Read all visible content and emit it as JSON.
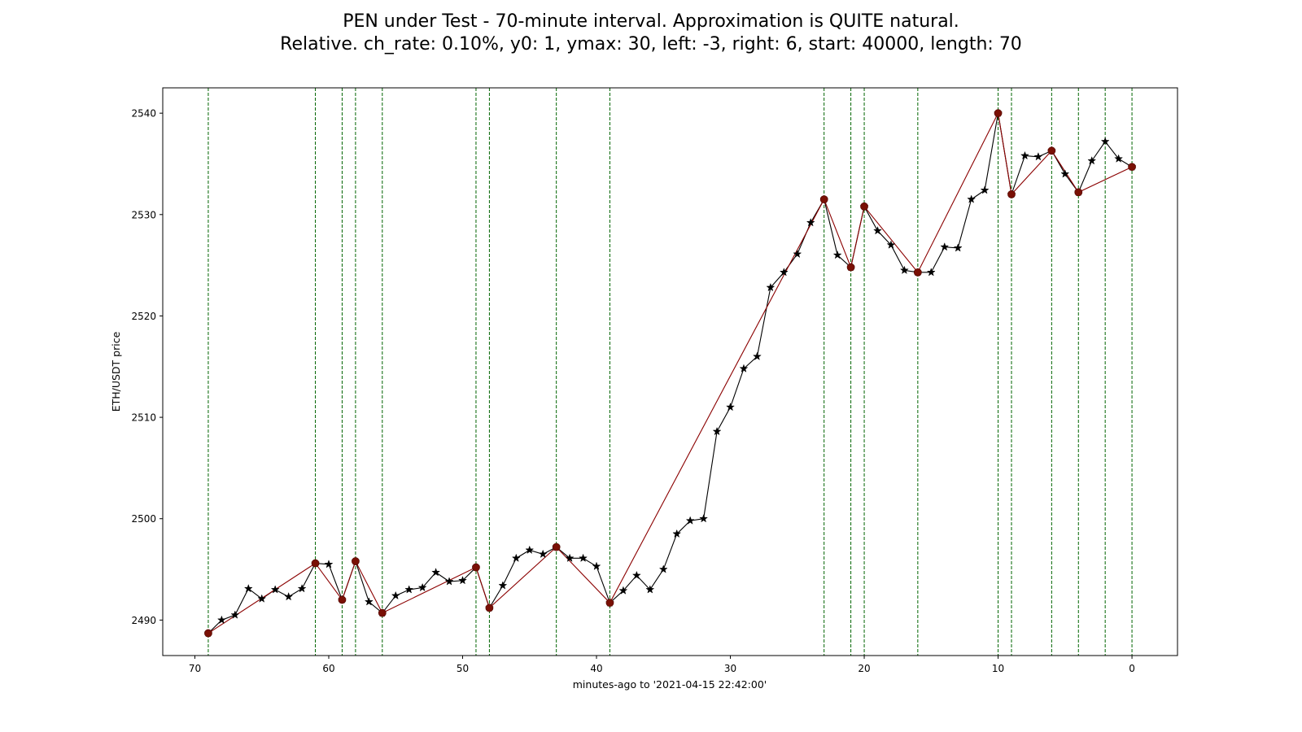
{
  "chart_data": {
    "type": "line",
    "title": "PEN under Test - 70-minute interval. Approximation is QUITE natural.",
    "subtitle": "Relative. ch_rate: 0.10%, y0: 1, ymax: 30, left: -3, right: 6, start: 40000, length: 70",
    "xlabel": "minutes-ago to '2021-04-15 22:42:00'",
    "ylabel": "ETH/USDT price",
    "xlim": [
      72.4,
      -3.4
    ],
    "ylim": [
      2486.5,
      2542.5
    ],
    "x_ticks": [
      70,
      60,
      50,
      40,
      30,
      20,
      10,
      0
    ],
    "y_ticks": [
      2490,
      2500,
      2510,
      2520,
      2530,
      2540
    ],
    "grid": false,
    "series": [
      {
        "color": "#000000",
        "marker": "star",
        "x": [
          69,
          68,
          67,
          66,
          65,
          64,
          63,
          62,
          61,
          60,
          59,
          58,
          57,
          56,
          55,
          54,
          53,
          52,
          51,
          50,
          49,
          48,
          47,
          46,
          45,
          44,
          43,
          42,
          41,
          40,
          39,
          38,
          37,
          36,
          35,
          34,
          33,
          32,
          31,
          30,
          29,
          28,
          27,
          26,
          25,
          24,
          23,
          22,
          21,
          20,
          19,
          18,
          17,
          16,
          15,
          14,
          13,
          12,
          11,
          10,
          9,
          8,
          7,
          6,
          5,
          4,
          3,
          2,
          1,
          0
        ],
        "values": [
          2488.7,
          2490.0,
          2490.5,
          2493.1,
          2492.1,
          2493.0,
          2492.3,
          2493.1,
          2495.6,
          2495.5,
          2492.0,
          2495.8,
          2491.8,
          2490.7,
          2492.4,
          2493.0,
          2493.2,
          2494.7,
          2493.8,
          2493.9,
          2495.2,
          2491.2,
          2493.4,
          2496.1,
          2496.9,
          2496.5,
          2497.2,
          2496.1,
          2496.1,
          2495.3,
          2491.7,
          2492.9,
          2494.4,
          2493.0,
          2495.0,
          2498.5,
          2499.8,
          2500.0,
          2508.6,
          2511.0,
          2514.8,
          2516.0,
          2522.8,
          2524.3,
          2526.1,
          2529.2,
          2531.5,
          2526.0,
          2524.8,
          2530.8,
          2528.4,
          2527.0,
          2524.5,
          2524.3,
          2524.3,
          2526.8,
          2526.7,
          2531.5,
          2532.4,
          2540.0,
          2532.0,
          2535.8,
          2535.7,
          2536.3,
          2534.0,
          2532.2,
          2535.3,
          2537.2,
          2535.5,
          2534.7
        ]
      },
      {
        "color": "#8b0000",
        "marker": "circle",
        "x": [
          69,
          61,
          59,
          58,
          56,
          49,
          48,
          43,
          39,
          23,
          21,
          20,
          16,
          10,
          9,
          6,
          4,
          0
        ],
        "values": [
          2488.7,
          2495.6,
          2492.0,
          2495.8,
          2490.7,
          2495.2,
          2491.2,
          2497.2,
          2491.7,
          2531.5,
          2524.8,
          2530.8,
          2524.3,
          2540.0,
          2532.0,
          2536.3,
          2532.2,
          2534.7
        ]
      }
    ],
    "vlines": {
      "color": "#006400",
      "style": "dashed",
      "x": [
        69,
        61,
        59,
        58,
        56,
        49,
        48,
        43,
        39,
        23,
        21,
        20,
        16,
        10,
        9,
        6,
        4,
        2,
        0
      ]
    }
  }
}
